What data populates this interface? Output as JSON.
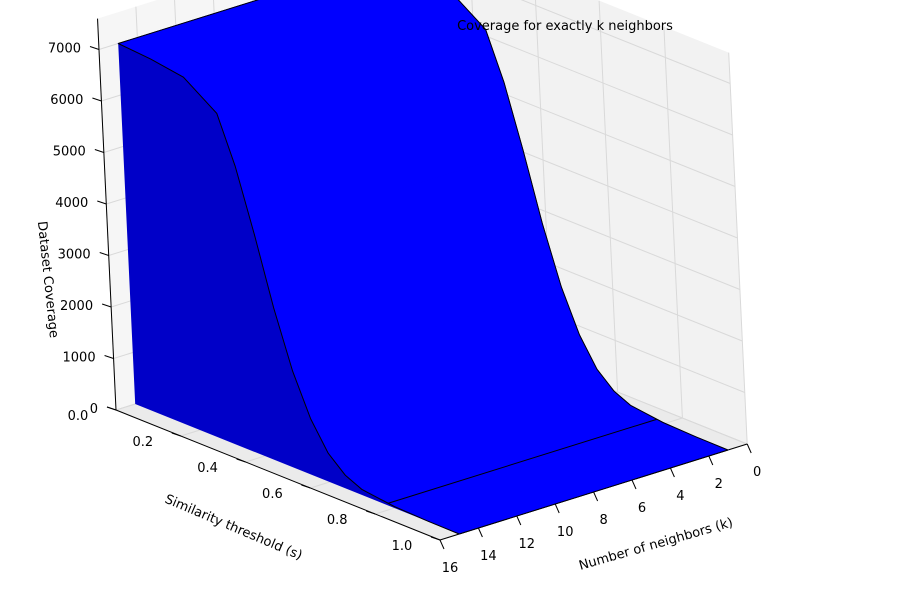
{
  "chart_data": {
    "type": "surface3d",
    "title": "Coverage for exactly k neighbors",
    "xlabel": "Number of neighbors (k)",
    "ylabel": "Similarity threshold (s)",
    "zlabel": "Dataset Coverage",
    "x_ticks": [
      "0",
      "2",
      "4",
      "6",
      "8",
      "10",
      "12",
      "14",
      "16"
    ],
    "y_ticks": [
      "0.0",
      "0.2",
      "0.4",
      "0.6",
      "0.8",
      "1.0"
    ],
    "z_ticks": [
      "0",
      "1000",
      "2000",
      "3000",
      "4000",
      "5000",
      "6000",
      "7000"
    ],
    "xlim": [
      0,
      16
    ],
    "ylim": [
      0,
      1
    ],
    "zlim": [
      0,
      7000
    ],
    "s": [
      0.0,
      0.1,
      0.2,
      0.3,
      0.35,
      0.4,
      0.45,
      0.5,
      0.55,
      0.6,
      0.65,
      0.7,
      0.8,
      0.9,
      1.0
    ],
    "coverage_profile": [
      7000,
      6950,
      6850,
      6400,
      5500,
      4300,
      3000,
      1900,
      1100,
      560,
      260,
      110,
      30,
      5,
      0
    ],
    "k_range": [
      1,
      15
    ],
    "surface_color": "#0000ff",
    "grid": true
  }
}
